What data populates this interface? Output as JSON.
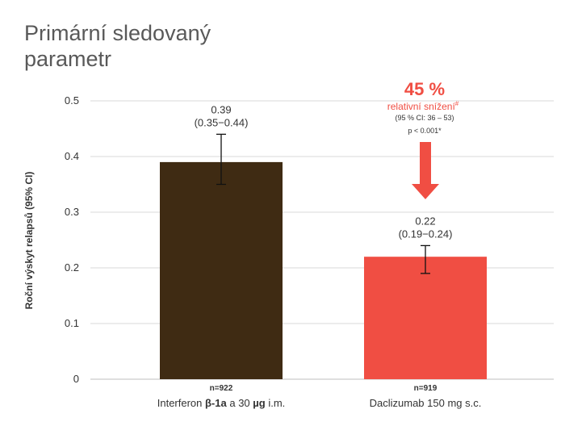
{
  "colors": {
    "title": "#595959",
    "axis_text": "#333333",
    "grid": "#d9d9d9",
    "accent": "#f04e43"
  },
  "chart_data": {
    "type": "bar",
    "title_lines": [
      "Primární sledovaný",
      "parametr"
    ],
    "xlabel": "",
    "ylabel": "Roční výskyt relapsů (95% CI)",
    "ylim": [
      0,
      0.5
    ],
    "yticks": [
      0,
      0.1,
      0.2,
      0.3,
      0.4,
      0.5
    ],
    "ytick_labels": [
      "0",
      "0.1",
      "0.2",
      "0.3",
      "0.4",
      "0.5"
    ],
    "grid": true,
    "categories": [
      {
        "parts": [
          {
            "text": "Interferon ",
            "bold": false
          },
          {
            "text": "β-1a",
            "bold": true
          },
          {
            "text": " a 30 ",
            "bold": false
          },
          {
            "text": "µg",
            "bold": true
          },
          {
            "text": " i.m.",
            "bold": false
          }
        ]
      },
      {
        "parts": [
          {
            "text": "Daclizumab 150 mg s.c.",
            "bold": false
          }
        ]
      }
    ],
    "values": [
      0.39,
      0.22
    ],
    "error_low": [
      0.35,
      0.19
    ],
    "error_high": [
      0.44,
      0.24
    ],
    "bar_colors": [
      "#3f2b13",
      "#f04e43"
    ],
    "value_labels": [
      "0.39",
      "0.22"
    ],
    "ci_labels": [
      "(0.35−0.44)",
      "(0.19−0.24)"
    ],
    "n_labels": [
      "n=922",
      "n=919"
    ],
    "annotation": {
      "percent": "45 %",
      "text": "relativní snížení",
      "text_sup": "#",
      "ci": "(95 % CI: 36 – 53)",
      "p": "p < 0.001*",
      "color": "#f04e43",
      "arrow": "down-arrow-icon"
    }
  }
}
